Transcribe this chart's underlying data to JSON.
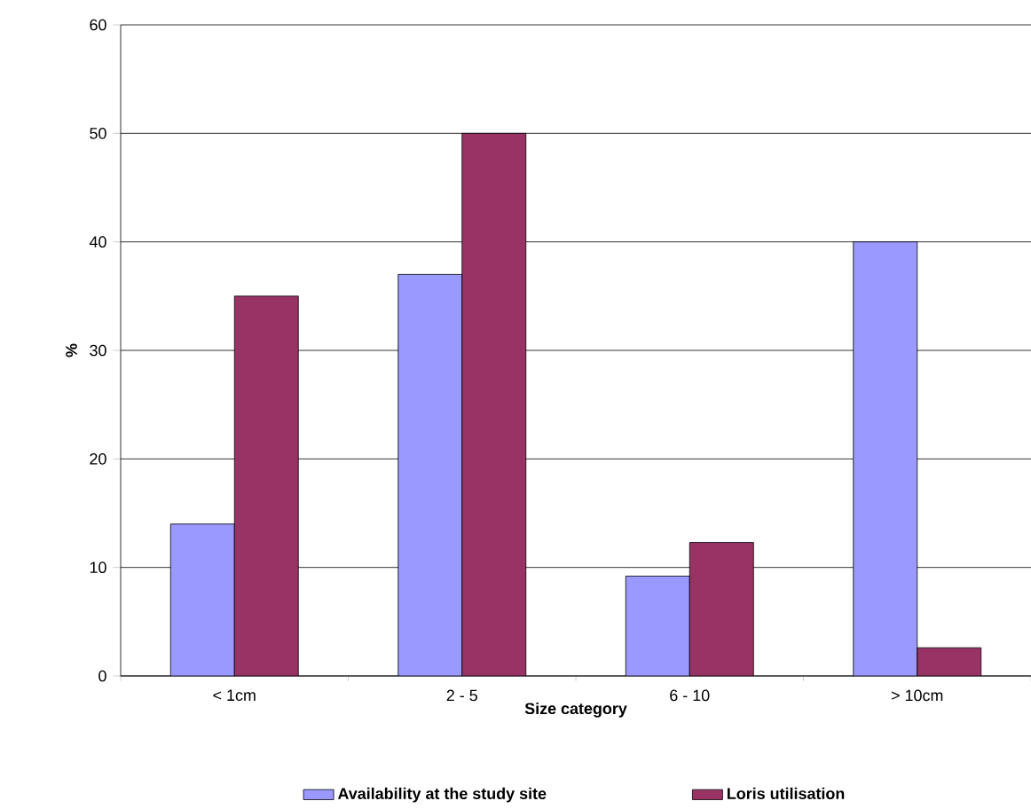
{
  "chart_data": {
    "type": "bar",
    "xlabel": "Size category",
    "ylabel": "%",
    "categories": [
      "< 1cm",
      "2 - 5",
      "6 - 10",
      "> 10cm"
    ],
    "series": [
      {
        "name": "Availability at the study site",
        "color": "#9999ff",
        "values": [
          14,
          37,
          9.2,
          40
        ]
      },
      {
        "name": "Loris utilisation",
        "color": "#993366",
        "values": [
          35,
          50,
          12.3,
          2.6
        ]
      }
    ],
    "ylim": [
      0,
      60
    ],
    "yticks": [
      0,
      10,
      20,
      30,
      40,
      50,
      60
    ],
    "grid": "y",
    "legend": "bottom"
  }
}
